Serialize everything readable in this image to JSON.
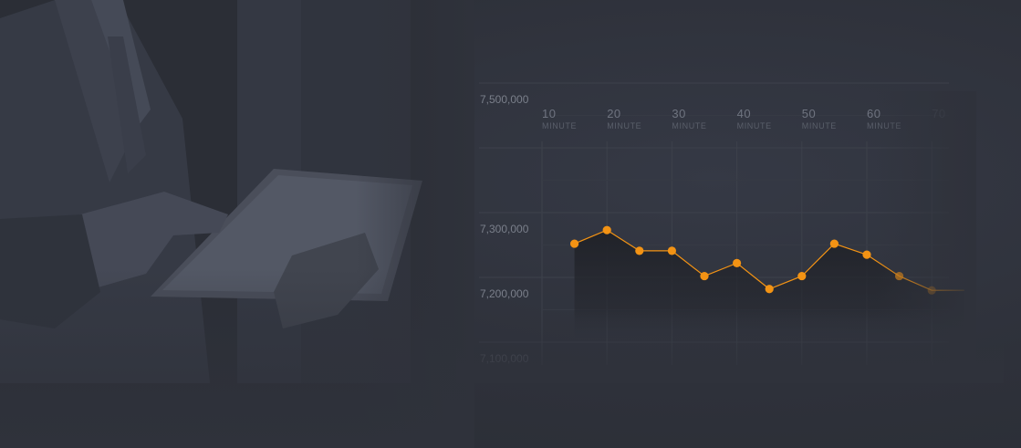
{
  "colors": {
    "background": "#2f323b",
    "accent": "#f39314",
    "grid": "#3d414b",
    "label": "#6f7480"
  },
  "chart_data": {
    "type": "line",
    "title": "",
    "xlabel": "",
    "ylabel": "",
    "x_ticks": [
      {
        "value": "10",
        "unit": "MINUTE"
      },
      {
        "value": "20",
        "unit": "MINUTE"
      },
      {
        "value": "30",
        "unit": "MINUTE"
      },
      {
        "value": "40",
        "unit": "MINUTE"
      },
      {
        "value": "50",
        "unit": "MINUTE"
      },
      {
        "value": "60",
        "unit": "MINUTE"
      },
      {
        "value": "70",
        "unit": ""
      }
    ],
    "y_ticks": [
      "7,500,000",
      "7,300,000",
      "7,200,000",
      "7,100,000"
    ],
    "xlim": [
      0,
      70
    ],
    "ylim": [
      7100000,
      7500000
    ],
    "grid": true,
    "series": [
      {
        "x": [
          15,
          20,
          25,
          30,
          35,
          40,
          45,
          50,
          55,
          60,
          65,
          70,
          75
        ],
        "y": [
          7252000,
          7273000,
          7241000,
          7241000,
          7202000,
          7222000,
          7182000,
          7202000,
          7252000,
          7235000,
          7202000,
          7180000,
          7180000
        ]
      }
    ]
  }
}
